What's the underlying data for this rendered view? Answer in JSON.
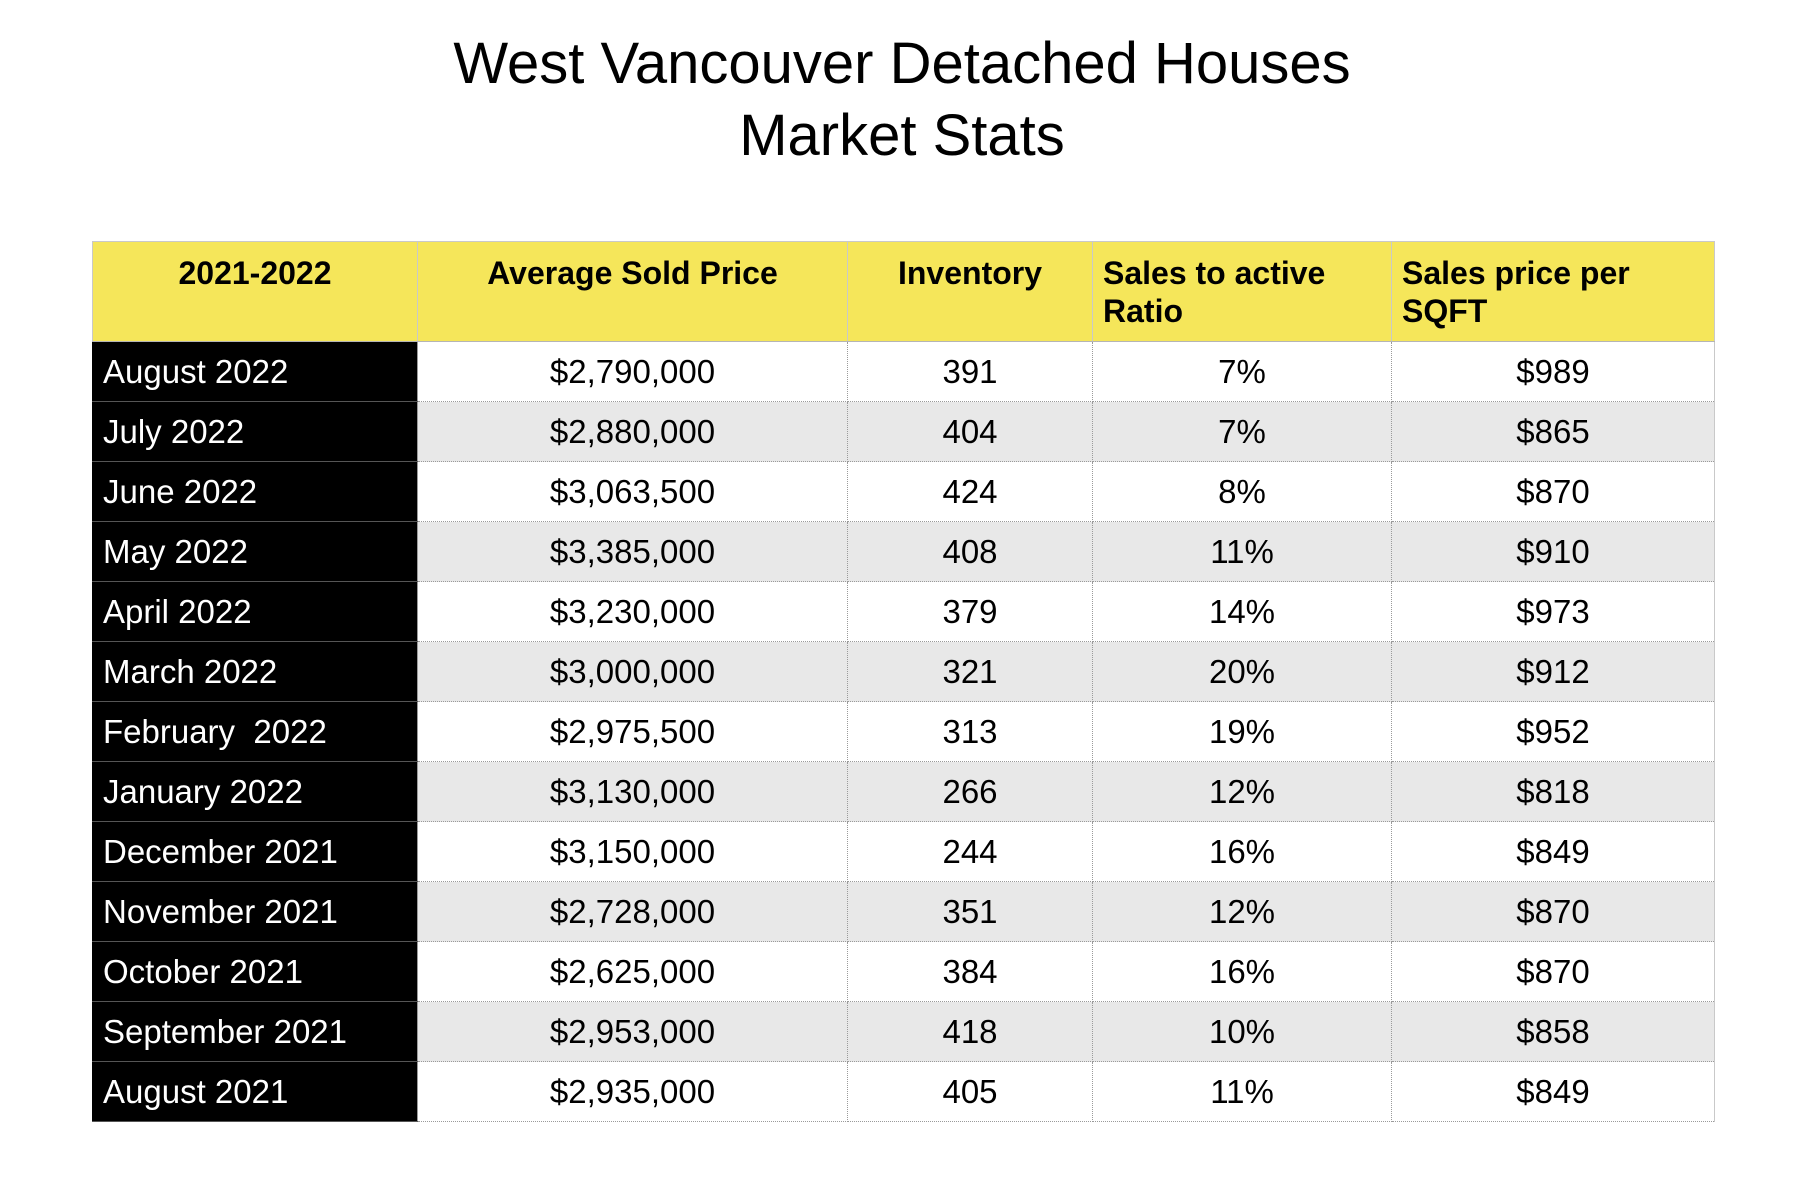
{
  "title": {
    "line1": "West Vancouver Detached Houses",
    "line2": "Market Stats"
  },
  "table": {
    "headers": {
      "period": "2021-2022",
      "avg_price": "Average Sold Price",
      "inventory": "Inventory",
      "ratio_line1": "Sales to active",
      "ratio_line2": "Ratio",
      "sqft_line1": "Sales price per",
      "sqft_line2": "SQFT"
    },
    "header_color": "#f5e65a",
    "rows": [
      {
        "month": "August 2022",
        "price": "$2,790,000",
        "inventory": "391",
        "ratio": "7%",
        "sqft": "$989"
      },
      {
        "month": "July 2022",
        "price": "$2,880,000",
        "inventory": "404",
        "ratio": "7%",
        "sqft": "$865"
      },
      {
        "month": "June 2022",
        "price": "$3,063,500",
        "inventory": "424",
        "ratio": "8%",
        "sqft": "$870"
      },
      {
        "month": "May 2022",
        "price": "$3,385,000",
        "inventory": "408",
        "ratio": "11%",
        "sqft": "$910"
      },
      {
        "month": "April 2022",
        "price": "$3,230,000",
        "inventory": "379",
        "ratio": "14%",
        "sqft": "$973"
      },
      {
        "month": "March 2022",
        "price": "$3,000,000",
        "inventory": "321",
        "ratio": "20%",
        "sqft": "$912"
      },
      {
        "month": "February  2022",
        "price": "$2,975,500",
        "inventory": "313",
        "ratio": "19%",
        "sqft": "$952"
      },
      {
        "month": "January 2022",
        "price": "$3,130,000",
        "inventory": "266",
        "ratio": "12%",
        "sqft": "$818"
      },
      {
        "month": "December 2021",
        "price": "$3,150,000",
        "inventory": "244",
        "ratio": "16%",
        "sqft": "$849"
      },
      {
        "month": "November 2021",
        "price": "$2,728,000",
        "inventory": "351",
        "ratio": "12%",
        "sqft": "$870"
      },
      {
        "month": "October 2021",
        "price": "$2,625,000",
        "inventory": "384",
        "ratio": "16%",
        "sqft": "$870"
      },
      {
        "month": "September 2021",
        "price": "$2,953,000",
        "inventory": "418",
        "ratio": "10%",
        "sqft": "$858"
      },
      {
        "month": "August 2021",
        "price": "$2,935,000",
        "inventory": "405",
        "ratio": "11%",
        "sqft": "$849"
      }
    ]
  }
}
